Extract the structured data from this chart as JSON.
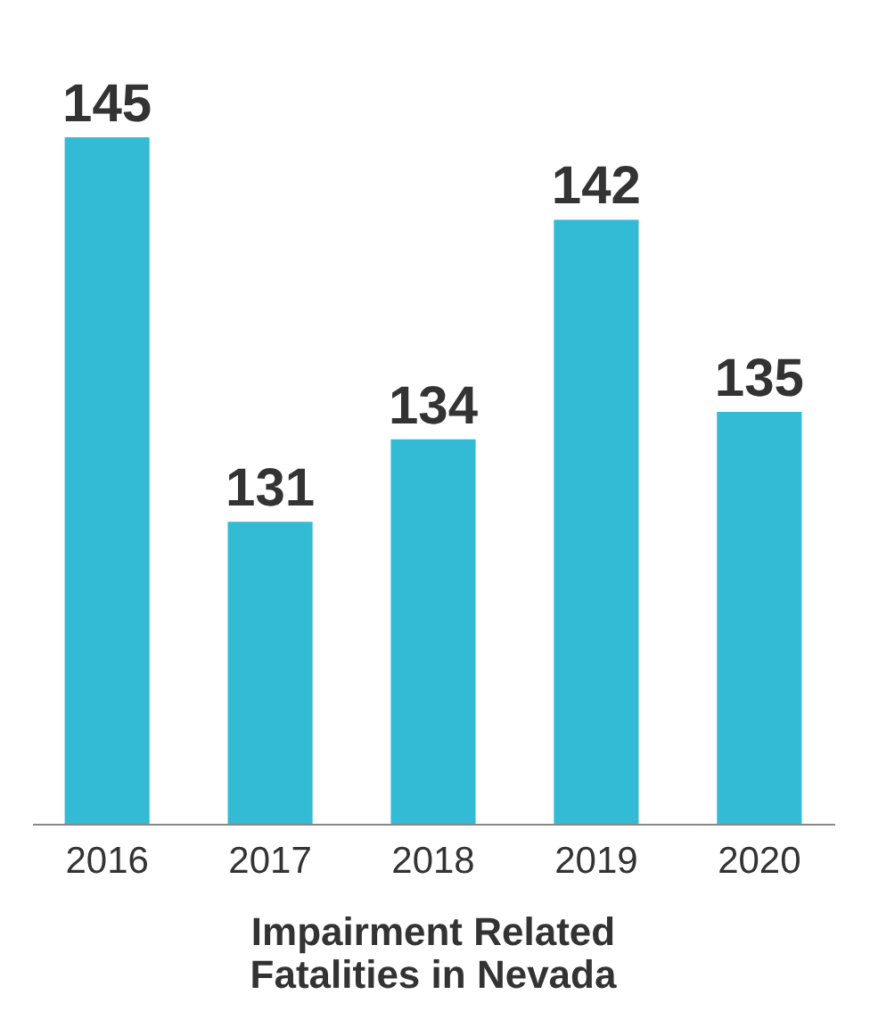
{
  "chart_data": {
    "type": "bar",
    "title": "Impairment Related Fatalities in Nevada",
    "categories": [
      "2016",
      "2017",
      "2018",
      "2019",
      "2020"
    ],
    "values": [
      145,
      131,
      134,
      142,
      135
    ],
    "color": "#33bbd5",
    "ylim": [
      120,
      145
    ],
    "data_labels": true
  }
}
